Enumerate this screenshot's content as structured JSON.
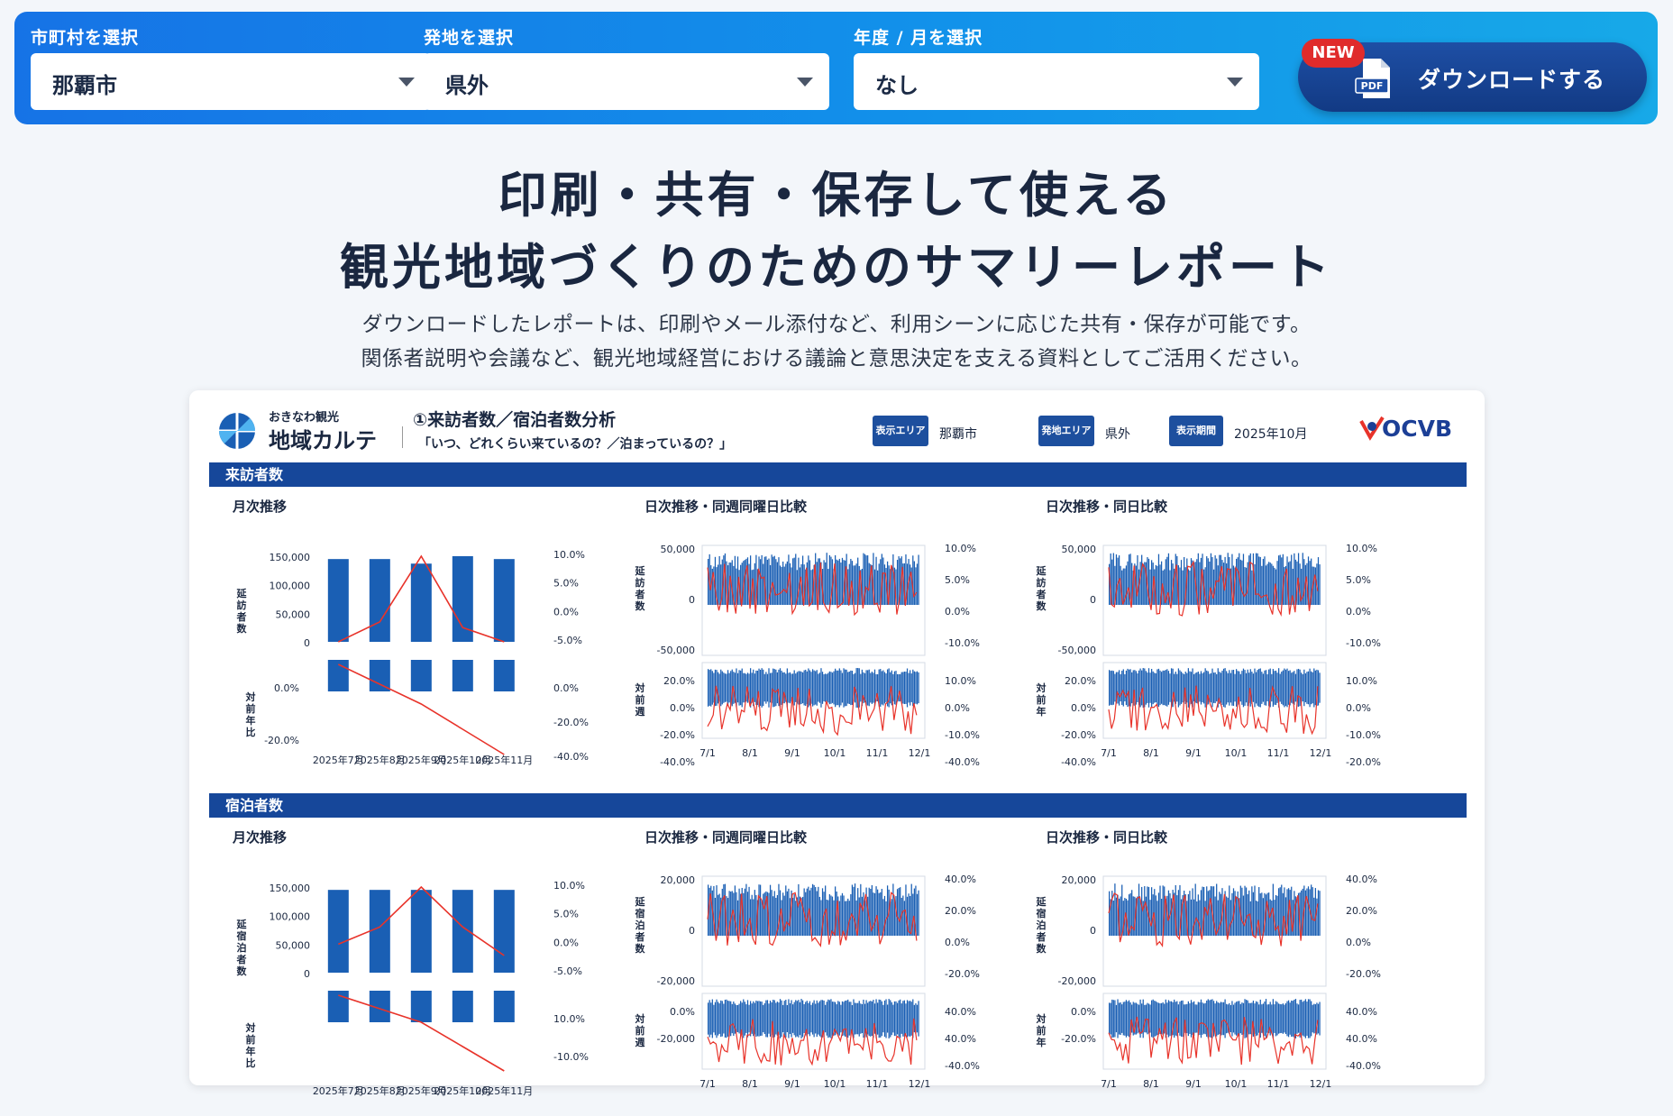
{
  "controls": {
    "municipality": {
      "label": "市町村を選択",
      "value": "那覇市"
    },
    "origin": {
      "label": "発地を選択",
      "value": "県外"
    },
    "period": {
      "label": "年度 / 月を選択",
      "value": "なし"
    },
    "download": {
      "label": "ダウンロードする",
      "badge": "NEW",
      "icon_text": "PDF"
    }
  },
  "hero": {
    "line1": "印刷・共有・保存して使える",
    "line2": "観光地域づくりのためのサマリーレポート",
    "desc1": "ダウンロードしたレポートは、印刷やメール添付など、利用シーンに応じた共有・保存が可能です。",
    "desc2": "関係者説明や会議など、観光地域経営における議論と意思決定を支える資料としてご活用ください。"
  },
  "report": {
    "brand_small": "おきなわ観光",
    "brand_big": "地域カルテ",
    "title": "①来訪者数／宿泊者数分析",
    "subtitle": "「いつ、どれくらい来ているの？／泊まっているの？」",
    "meta": [
      {
        "badge": "表示エリア",
        "value": "那覇市"
      },
      {
        "badge": "発地エリア",
        "value": "県外"
      },
      {
        "badge": "表示期間",
        "value": "2025年10月"
      }
    ],
    "org_logo": "OCVB",
    "colors": {
      "bar": "#1a5fb4",
      "line": "#e8332a",
      "section": "#16479a"
    },
    "sections": [
      {
        "name": "来訪者数",
        "monthly": {
          "title": "月次推移",
          "ylabel": "延訪者数",
          "y2label": "対前年比",
          "yticks": [
            "150,000",
            "100,000",
            "50,000",
            "0"
          ],
          "rticks": [
            "10.0%",
            "5.0%",
            "0.0%",
            "-5.0%"
          ],
          "y2ticks": [
            "0.0%",
            "-20.0%"
          ],
          "r2ticks": [
            "0.0%",
            "-20.0%",
            "-40.0%"
          ],
          "categories": [
            "2025年7月",
            "2025年8月",
            "2025年9月",
            "2025年10月",
            "2025年11月"
          ]
        },
        "daily_week": {
          "title": "日次推移・同週同曜日比較",
          "ylabel": "延訪者数",
          "y2label": "対前週",
          "yticks": [
            "50,000",
            "0",
            "-50,000"
          ],
          "rticks": [
            "10.0%",
            "5.0%",
            "0.0%",
            "-10.0%"
          ],
          "y2ticks": [
            "20.0%",
            "0.0%",
            "-20.0%",
            "-40.0%"
          ],
          "r2ticks": [
            "10.0%",
            "0.0%",
            "-10.0%",
            "-40.0%"
          ],
          "xticks": [
            "7/1",
            "8/1",
            "9/1",
            "10/1",
            "11/1",
            "12/1"
          ]
        },
        "daily_day": {
          "title": "日次推移・同日比較",
          "ylabel": "延訪者数",
          "y2label": "対前年",
          "yticks": [
            "50,000",
            "0",
            "-50,000"
          ],
          "rticks": [
            "10.0%",
            "5.0%",
            "0.0%",
            "-10.0%"
          ],
          "y2ticks": [
            "20.0%",
            "0.0%",
            "-20.0%",
            "-40.0%"
          ],
          "r2ticks": [
            "10.0%",
            "0.0%",
            "-10.0%",
            "-20.0%"
          ],
          "xticks": [
            "7/1",
            "8/1",
            "9/1",
            "10/1",
            "11/1",
            "12/1"
          ]
        }
      },
      {
        "name": "宿泊者数",
        "monthly": {
          "title": "月次推移",
          "ylabel": "延宿泊者数",
          "y2label": "対前年比",
          "yticks": [
            "150,000",
            "100,000",
            "50,000",
            "0"
          ],
          "rticks": [
            "10.0%",
            "5.0%",
            "0.0%",
            "-5.0%"
          ],
          "y2ticks": [],
          "r2ticks": [
            "10.0%",
            "-10.0%"
          ],
          "categories": [
            "2025年7月",
            "2025年8月",
            "2025年9月",
            "2025年10月",
            "2025年11月"
          ]
        },
        "daily_week": {
          "title": "日次推移・同週同曜日比較",
          "ylabel": "延宿泊者数",
          "y2label": "対前週",
          "yticks": [
            "20,000",
            "0",
            "-20,000"
          ],
          "rticks": [
            "40.0%",
            "20.0%",
            "0.0%",
            "-20.0%"
          ],
          "y2ticks": [
            "0.0%",
            "-20,000"
          ],
          "r2ticks": [
            "40.0%",
            "40.0%",
            "-40.0%"
          ],
          "xticks": [
            "7/1",
            "8/1",
            "9/1",
            "10/1",
            "11/1",
            "12/1"
          ]
        },
        "daily_day": {
          "title": "日次推移・同日比較",
          "ylabel": "延宿泊者数",
          "y2label": "対前年",
          "yticks": [
            "20,000",
            "0",
            "-20,000"
          ],
          "rticks": [
            "40.0%",
            "20.0%",
            "0.0%",
            "-20.0%"
          ],
          "y2ticks": [
            "0.0%",
            "-20.0%"
          ],
          "r2ticks": [
            "40.0%",
            "40.0%",
            "-40.0%"
          ],
          "xticks": [
            "7/1",
            "8/1",
            "9/1",
            "10/1",
            "11/1",
            "12/1"
          ]
        }
      }
    ]
  },
  "chart_data": [
    {
      "type": "bar",
      "title": "来訪者数 月次推移",
      "categories": [
        "2025年7月",
        "2025年8月",
        "2025年9月",
        "2025年10月",
        "2025年11月"
      ],
      "series": [
        {
          "name": "延訪者数",
          "values": [
            145000,
            145000,
            137000,
            150000,
            145000
          ]
        },
        {
          "name": "対前年比",
          "values": [
            -5.0,
            -1.5,
            10.0,
            -2.5,
            -5.0
          ]
        }
      ],
      "ylim": [
        0,
        150000
      ]
    },
    {
      "type": "bar",
      "title": "宿泊者数 月次推移",
      "categories": [
        "2025年7月",
        "2025年8月",
        "2025年9月",
        "2025年10月",
        "2025年11月"
      ],
      "series": [
        {
          "name": "延宿泊者数",
          "values": [
            145000,
            145000,
            145000,
            145000,
            145000
          ]
        },
        {
          "name": "対前年比",
          "values": [
            0.0,
            3.0,
            10.0,
            3.0,
            -2.0
          ]
        }
      ],
      "ylim": [
        0,
        150000
      ]
    }
  ]
}
